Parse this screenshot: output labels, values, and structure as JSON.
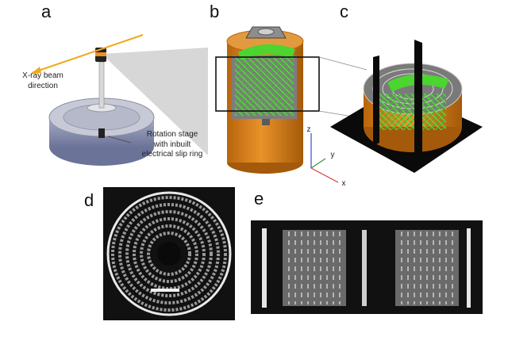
{
  "panels": {
    "a": {
      "label": "a",
      "beam_text": "X-ray beam direction",
      "stage_text": "Rotation stage with inbuilt electrical slip ring"
    },
    "b": {
      "label": "b",
      "axes": {
        "x": "x",
        "y": "y",
        "z": "z"
      }
    },
    "c": {
      "label": "c"
    },
    "d": {
      "label": "d"
    },
    "e": {
      "label": "e"
    }
  },
  "colors": {
    "beam": "#f2a81d",
    "casing": "#d07d18",
    "electrode": "#4cd430",
    "stage": "#7d86a8",
    "ct_bg": "#111111",
    "ct_spiral": "#9a9a9a",
    "axis_x": "#d33a3a",
    "axis_y": "#2f9a3a",
    "axis_z": "#3a4bd3"
  }
}
